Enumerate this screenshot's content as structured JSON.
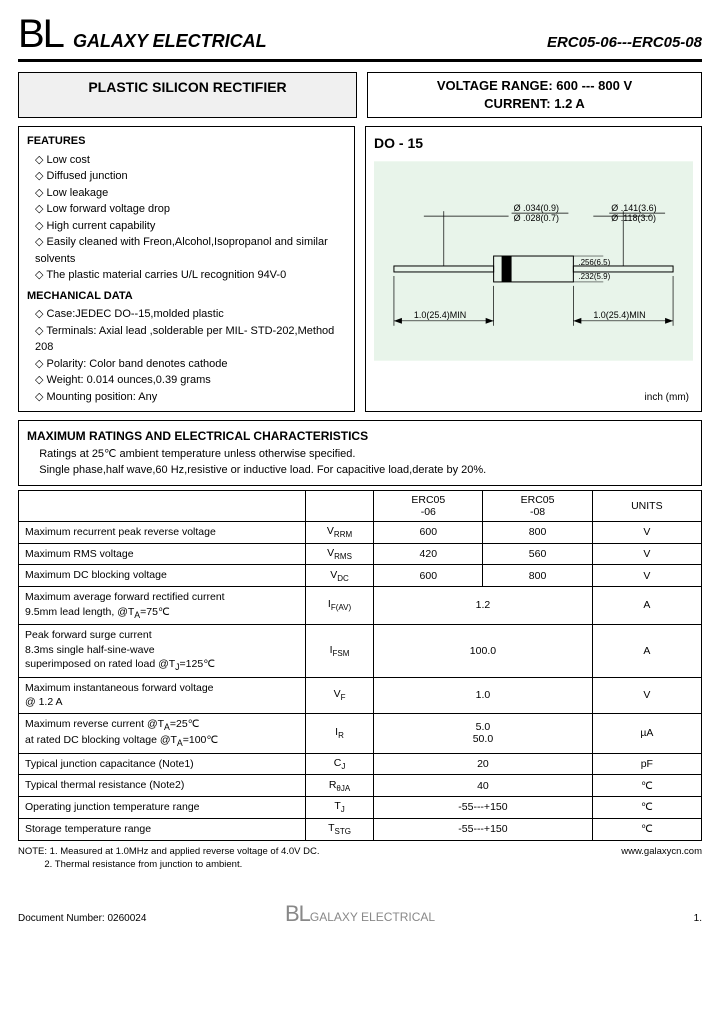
{
  "header": {
    "logo": "BL",
    "company": "GALAXY ELECTRICAL",
    "partno": "ERC05-06---ERC05-08"
  },
  "title": "PLASTIC SILICON RECTIFIER",
  "spec": {
    "line1": "VOLTAGE RANGE: 600 --- 800 V",
    "line2": "CURRENT: 1.2 A"
  },
  "features": {
    "heading": "FEATURES",
    "items": [
      "Low cost",
      "Diffused junction",
      "Low leakage",
      "Low forward voltage drop",
      "High current capability",
      "Easily cleaned with Freon,Alcohol,Isopropanol and similar solvents",
      "The plastic material carries U/L recognition 94V-0"
    ]
  },
  "mechanical": {
    "heading": "MECHANICAL DATA",
    "items": [
      "Case:JEDEC DO--15,molded plastic",
      "Terminals: Axial lead ,solderable per MIL- STD-202,Method 208",
      "Polarity: Color band denotes cathode",
      "Weight: 0.014 ounces,0.39 grams",
      "Mounting position: Any"
    ]
  },
  "diagram": {
    "title": "DO - 15",
    "dims": {
      "d1": "Ø .034(0.9)",
      "d1b": "Ø .028(0.7)",
      "d2": "Ø .141(3.6)",
      "d2b": "Ø .118(3.0)",
      "body1": ".256(6.5)",
      "body2": ".232(5.9)",
      "lead": "1.0(25.4)MIN",
      "unit": "inch (mm)"
    },
    "colors": {
      "bg": "#e8f4ea",
      "line": "#000000"
    }
  },
  "ratings": {
    "heading": "MAXIMUM RATINGS AND ELECTRICAL CHARACTERISTICS",
    "sub1": "Ratings at 25℃ ambient temperature unless otherwise specified.",
    "sub2": "Single phase,half wave,60 Hz,resistive or inductive load. For capacitive load,derate by 20%.",
    "columns": [
      "",
      "",
      "ERC05\n-06",
      "ERC05\n-08",
      "UNITS"
    ],
    "rows": [
      {
        "param": "Maximum recurrent peak reverse voltage",
        "sym": "V",
        "sub": "RRM",
        "vals": [
          "600",
          "800"
        ],
        "unit": "V"
      },
      {
        "param": "Maximum RMS voltage",
        "sym": "V",
        "sub": "RMS",
        "vals": [
          "420",
          "560"
        ],
        "unit": "V"
      },
      {
        "param": "Maximum DC blocking voltage",
        "sym": "V",
        "sub": "DC",
        "vals": [
          "600",
          "800"
        ],
        "unit": "V"
      },
      {
        "param": "Maximum average forward rectified current\n9.5mm lead length,        @T<sub>A</sub>=75℃",
        "sym": "I",
        "sub": "F(AV)",
        "merged": "1.2",
        "unit": "A"
      },
      {
        "param": "Peak forward surge current\n8.3ms single half-sine-wave\nsuperimposed on rated load   @T<sub>J</sub>=125℃",
        "sym": "I",
        "sub": "FSM",
        "merged": "100.0",
        "unit": "A"
      },
      {
        "param": "Maximum instantaneous forward voltage\n            @ 1.2 A",
        "sym": "V",
        "sub": "F",
        "merged": "1.0",
        "unit": "V"
      },
      {
        "param": "Maximum reverse current        @T<sub>A</sub>=25℃\nat rated DC blocking voltage  @T<sub>A</sub>=100℃",
        "sym": "I",
        "sub": "R",
        "merged": "5.0\n50.0",
        "unit": "µA"
      },
      {
        "param": "Typical junction capacitance      (Note1)",
        "sym": "C",
        "sub": "J",
        "merged": "20",
        "unit": "pF"
      },
      {
        "param": "Typical thermal resistance          (Note2)",
        "sym": "R",
        "sub": "θJA",
        "merged": "40",
        "unit": "℃"
      },
      {
        "param": "Operating junction temperature range",
        "sym": "T",
        "sub": "J",
        "merged": "-55---+150",
        "unit": "℃"
      },
      {
        "param": "Storage temperature range",
        "sym": "T",
        "sub": "STG",
        "merged": "-55---+150",
        "unit": "℃"
      }
    ]
  },
  "notes": {
    "n1": "NOTE: 1. Measured at 1.0MHz and applied reverse voltage of 4.0V DC.",
    "n2": "          2. Thermal resistance from junction to ambient.",
    "url": "www.galaxycn.com"
  },
  "footer": {
    "docnum": "Document Number: 0260024",
    "logo": "BL",
    "company": "GALAXY ELECTRICAL",
    "page": "1."
  }
}
